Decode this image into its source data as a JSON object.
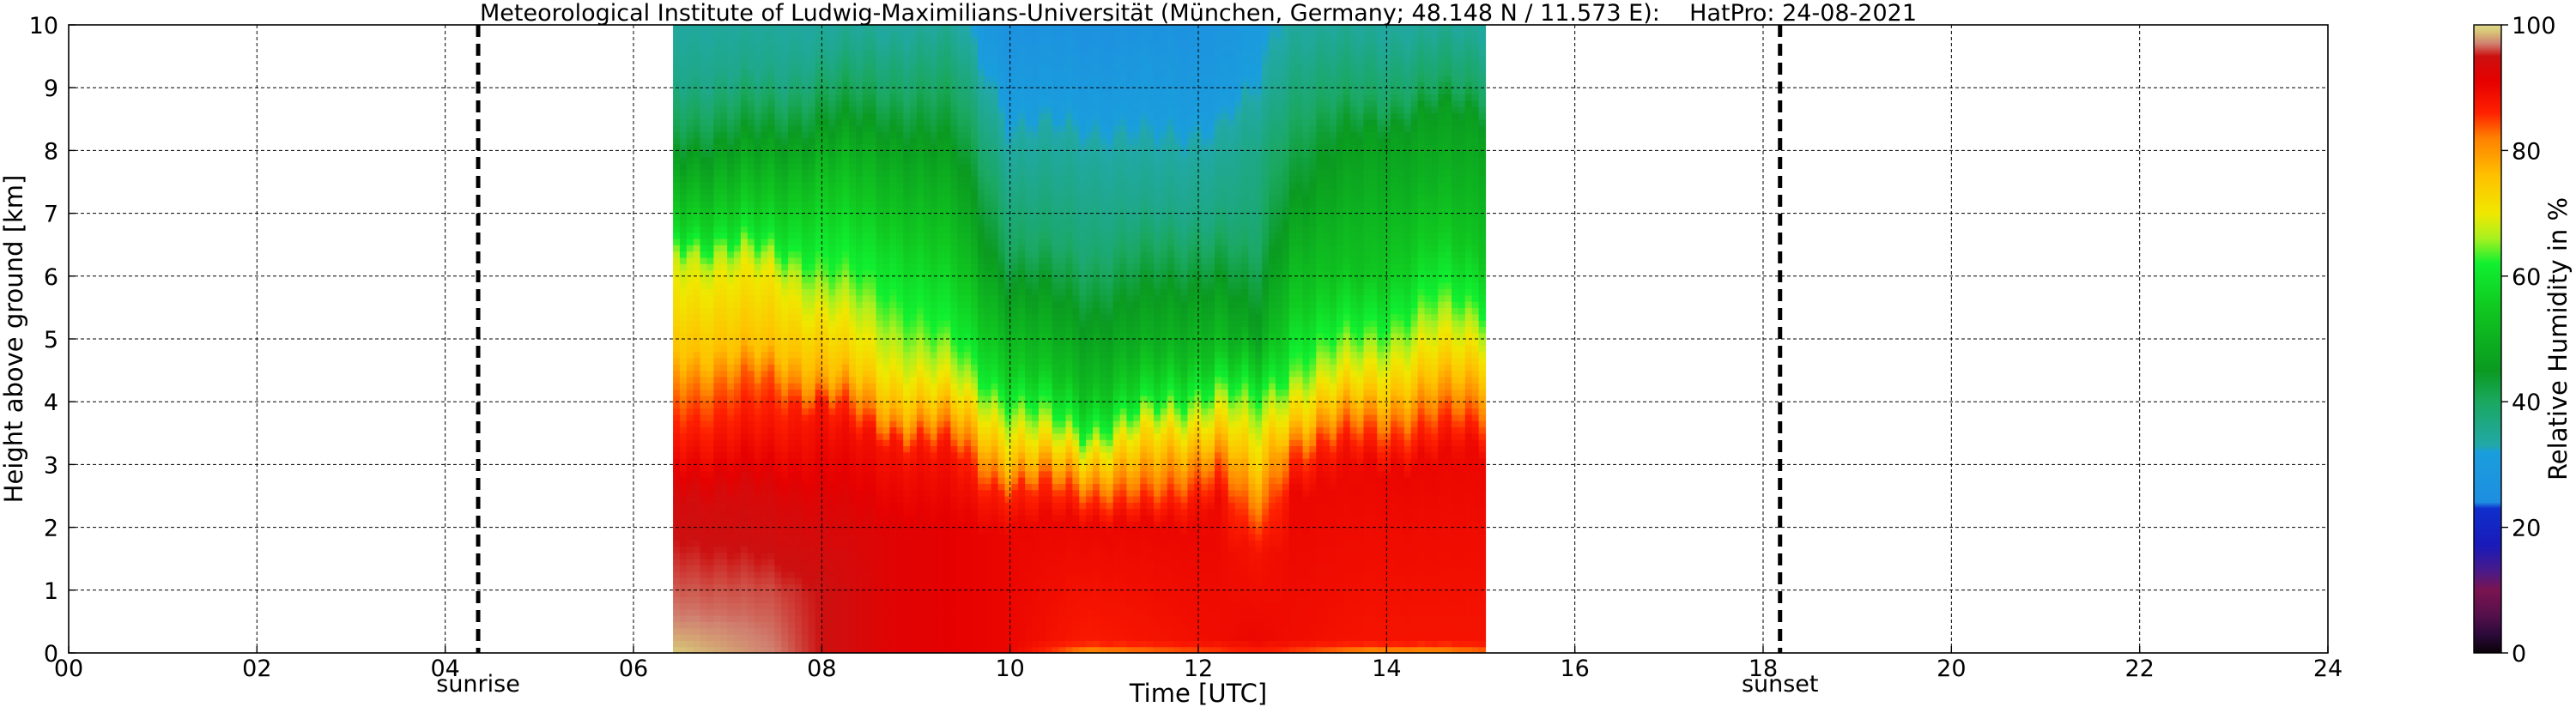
{
  "chart_data": {
    "type": "heatmap",
    "title": "Meteorological Institute of Ludwig-Maximilians-Universität (München, Germany; 48.148 N / 11.573 E):    HatPro: 24-08-2021",
    "xlabel": "Time [UTC]",
    "ylabel": "Height above ground [km]",
    "xlim": [
      0,
      24
    ],
    "ylim": [
      0,
      10
    ],
    "x_ticks": [
      0,
      2,
      4,
      6,
      8,
      10,
      12,
      14,
      16,
      18,
      20,
      22,
      24
    ],
    "x_tick_labels": [
      "00",
      "02",
      "04",
      "06",
      "08",
      "10",
      "12",
      "14",
      "16",
      "18",
      "20",
      "22",
      "24"
    ],
    "y_ticks": [
      0,
      1,
      2,
      3,
      4,
      5,
      6,
      7,
      8,
      9,
      10
    ],
    "y_tick_labels": [
      "0",
      "1",
      "2",
      "3",
      "4",
      "5",
      "6",
      "7",
      "8",
      "9",
      "10"
    ],
    "grid": true,
    "data_time_range": [
      6.42,
      15.05
    ],
    "markers": [
      {
        "name": "sunrise",
        "x": 4.35,
        "label": "sunrise"
      },
      {
        "name": "sunset",
        "x": 18.18,
        "label": "sunset"
      }
    ],
    "colorbar": {
      "label": "Relative Humidity in %",
      "range": [
        0,
        100
      ],
      "ticks": [
        0,
        20,
        40,
        60,
        80,
        100
      ],
      "tick_labels": [
        "0",
        "20",
        "40",
        "60",
        "80",
        "100"
      ],
      "colors": [
        {
          "v": 0,
          "c": "#0a0208"
        },
        {
          "v": 3,
          "c": "#2c0a3a"
        },
        {
          "v": 6,
          "c": "#55104c"
        },
        {
          "v": 10,
          "c": "#7a1450"
        },
        {
          "v": 13,
          "c": "#4a1a88"
        },
        {
          "v": 17,
          "c": "#1a1ab8"
        },
        {
          "v": 23,
          "c": "#0f2fcc"
        },
        {
          "v": 24,
          "c": "#1e8ee0"
        },
        {
          "v": 32,
          "c": "#1a9edc"
        },
        {
          "v": 33,
          "c": "#22a8a8"
        },
        {
          "v": 40,
          "c": "#1aa860"
        },
        {
          "v": 45,
          "c": "#0a9a20"
        },
        {
          "v": 55,
          "c": "#10c820"
        },
        {
          "v": 62,
          "c": "#10f030"
        },
        {
          "v": 66,
          "c": "#a8f020"
        },
        {
          "v": 70,
          "c": "#f0e800"
        },
        {
          "v": 76,
          "c": "#ffc000"
        },
        {
          "v": 82,
          "c": "#ff8000"
        },
        {
          "v": 86,
          "c": "#ff2000"
        },
        {
          "v": 91,
          "c": "#e60000"
        },
        {
          "v": 95,
          "c": "#cc1010"
        },
        {
          "v": 97,
          "c": "#d08070"
        },
        {
          "v": 99,
          "c": "#d8c878"
        },
        {
          "v": 100,
          "c": "#e0d890"
        }
      ]
    },
    "profiles": [
      {
        "t": 6.5,
        "h": [
          [
            0,
            99
          ],
          [
            0.6,
            97
          ],
          [
            2.5,
            94
          ],
          [
            4.3,
            82
          ],
          [
            4.8,
            76
          ],
          [
            6.3,
            68
          ],
          [
            6.8,
            58
          ],
          [
            8.3,
            42
          ],
          [
            9.2,
            36
          ],
          [
            10,
            34
          ]
        ]
      },
      {
        "t": 7.5,
        "h": [
          [
            0,
            97
          ],
          [
            1.0,
            96
          ],
          [
            2.5,
            93
          ],
          [
            4.3,
            84
          ],
          [
            4.8,
            76
          ],
          [
            6.0,
            70
          ],
          [
            6.6,
            60
          ],
          [
            8.3,
            44
          ],
          [
            9.2,
            36
          ],
          [
            10,
            34
          ]
        ]
      },
      {
        "t": 8.0,
        "h": [
          [
            0,
            95
          ],
          [
            1.0,
            95
          ],
          [
            2.2,
            93
          ],
          [
            3.9,
            88
          ],
          [
            4.4,
            78
          ],
          [
            5.2,
            72
          ],
          [
            6.0,
            64
          ],
          [
            7.5,
            54
          ],
          [
            8.5,
            44
          ],
          [
            9.5,
            36
          ],
          [
            10,
            34
          ]
        ]
      },
      {
        "t": 8.7,
        "h": [
          [
            0,
            92
          ],
          [
            2.0,
            92
          ],
          [
            3.4,
            88
          ],
          [
            3.9,
            78
          ],
          [
            4.6,
            70
          ],
          [
            5.5,
            64
          ],
          [
            6.5,
            58
          ],
          [
            8.0,
            48
          ],
          [
            9.0,
            40
          ],
          [
            10,
            34
          ]
        ]
      },
      {
        "t": 9.4,
        "h": [
          [
            0,
            91
          ],
          [
            2.0,
            91
          ],
          [
            3.1,
            88
          ],
          [
            3.6,
            80
          ],
          [
            4.2,
            70
          ],
          [
            5.0,
            62
          ],
          [
            6.2,
            55
          ],
          [
            7.5,
            48
          ],
          [
            8.5,
            42
          ],
          [
            10,
            34
          ]
        ]
      },
      {
        "t": 10.0,
        "h": [
          [
            0,
            90
          ],
          [
            2.0,
            90
          ],
          [
            2.6,
            86
          ],
          [
            3.1,
            76
          ],
          [
            3.8,
            66
          ],
          [
            4.5,
            56
          ],
          [
            5.5,
            48
          ],
          [
            6.5,
            40
          ],
          [
            8.0,
            34
          ],
          [
            9.0,
            30
          ],
          [
            10,
            26
          ]
        ]
      },
      {
        "t": 10.8,
        "h": [
          [
            0,
            80
          ],
          [
            0.2,
            87
          ],
          [
            2.1,
            90
          ],
          [
            2.6,
            84
          ],
          [
            3.1,
            74
          ],
          [
            3.6,
            62
          ],
          [
            4.3,
            52
          ],
          [
            5.2,
            46
          ],
          [
            6.5,
            38
          ],
          [
            8.0,
            34
          ],
          [
            9.0,
            30
          ],
          [
            10,
            26
          ]
        ]
      },
      {
        "t": 11.5,
        "h": [
          [
            0,
            82
          ],
          [
            0.2,
            88
          ],
          [
            2.0,
            90
          ],
          [
            2.6,
            82
          ],
          [
            3.4,
            72
          ],
          [
            4.0,
            60
          ],
          [
            4.8,
            50
          ],
          [
            5.8,
            44
          ],
          [
            7.0,
            36
          ],
          [
            8.0,
            33
          ],
          [
            9.0,
            30
          ],
          [
            10,
            26
          ]
        ]
      },
      {
        "t": 12.2,
        "h": [
          [
            0,
            84
          ],
          [
            0.2,
            89
          ],
          [
            2.4,
            90
          ],
          [
            3.0,
            84
          ],
          [
            3.6,
            74
          ],
          [
            4.2,
            64
          ],
          [
            4.8,
            54
          ],
          [
            5.8,
            46
          ],
          [
            7.0,
            37
          ],
          [
            8.0,
            34
          ],
          [
            9.0,
            30
          ],
          [
            10,
            27
          ]
        ]
      },
      {
        "t": 12.6,
        "h": [
          [
            0,
            86
          ],
          [
            0.2,
            90
          ],
          [
            1.6,
            88
          ],
          [
            2.2,
            82
          ],
          [
            3.0,
            72
          ],
          [
            4.0,
            62
          ],
          [
            5.0,
            46
          ],
          [
            6.5,
            38
          ],
          [
            8.0,
            36
          ],
          [
            9.0,
            32
          ],
          [
            10,
            30
          ]
        ]
      },
      {
        "t": 13.0,
        "h": [
          [
            0,
            84
          ],
          [
            0.2,
            89
          ],
          [
            2.6,
            90
          ],
          [
            3.3,
            84
          ],
          [
            3.8,
            74
          ],
          [
            4.5,
            64
          ],
          [
            5.5,
            56
          ],
          [
            6.5,
            50
          ],
          [
            7.5,
            44
          ],
          [
            8.5,
            40
          ],
          [
            10,
            34
          ]
        ]
      },
      {
        "t": 13.8,
        "h": [
          [
            0,
            80
          ],
          [
            0.2,
            88
          ],
          [
            3.0,
            90
          ],
          [
            3.6,
            84
          ],
          [
            4.2,
            74
          ],
          [
            5.0,
            64
          ],
          [
            6.0,
            54
          ],
          [
            7.2,
            50
          ],
          [
            8.2,
            46
          ],
          [
            8.8,
            40
          ],
          [
            10,
            34
          ]
        ]
      },
      {
        "t": 14.5,
        "h": [
          [
            0,
            80
          ],
          [
            0.2,
            88
          ],
          [
            3.0,
            90
          ],
          [
            3.7,
            84
          ],
          [
            4.5,
            74
          ],
          [
            5.5,
            64
          ],
          [
            6.5,
            56
          ],
          [
            7.5,
            50
          ],
          [
            8.5,
            46
          ],
          [
            9.0,
            40
          ],
          [
            10,
            34
          ]
        ]
      },
      {
        "t": 15.0,
        "h": [
          [
            0,
            82
          ],
          [
            0.2,
            88
          ],
          [
            3.3,
            90
          ],
          [
            4.0,
            82
          ],
          [
            4.8,
            72
          ],
          [
            5.6,
            62
          ],
          [
            6.5,
            54
          ],
          [
            7.5,
            50
          ],
          [
            8.5,
            46
          ],
          [
            9.0,
            40
          ],
          [
            10,
            34
          ]
        ]
      }
    ]
  }
}
